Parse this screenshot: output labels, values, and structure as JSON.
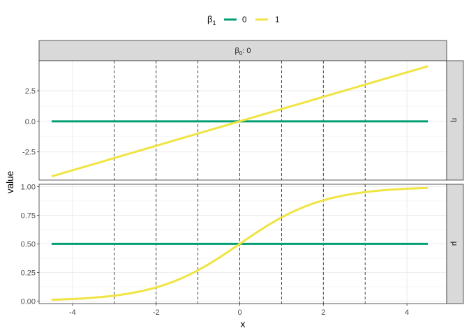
{
  "chart_data": {
    "type": "line",
    "xlabel": "x",
    "ylabel": "value",
    "xlim": [
      -4.8,
      4.95
    ],
    "x_ticks": [
      -4,
      -2,
      0,
      2,
      4
    ],
    "x_tick_labels": [
      "-4",
      "-2",
      "0",
      "2",
      "4"
    ],
    "vlines": [
      -3,
      -2,
      -1,
      0,
      1,
      2,
      3
    ],
    "grid": true,
    "legend": {
      "position": "top",
      "title": "β",
      "title_subscript": "1",
      "entries": [
        {
          "label": "0",
          "color": "#009E73"
        },
        {
          "label": "1",
          "color": "#F0E442"
        }
      ]
    },
    "top_strip": {
      "base": "β",
      "subscript": "0",
      "suffix": ": 0"
    },
    "panels": [
      {
        "row_label": "η",
        "ylim": [
          -4.8,
          4.95
        ],
        "y_ticks": [
          -2.5,
          0,
          2.5
        ],
        "y_tick_labels": [
          "-2.5",
          "0.0",
          "2.5"
        ],
        "series": [
          {
            "name": "0",
            "color": "#009E73",
            "func": "const",
            "value": 0,
            "x": [
              -4.5,
              4.5
            ]
          },
          {
            "name": "1",
            "color": "#F0E442",
            "func": "identity",
            "x": [
              -4.5,
              4.5
            ]
          }
        ]
      },
      {
        "row_label": "μ",
        "ylim": [
          -0.0223,
          1.0213
        ],
        "y_ticks": [
          0,
          0.25,
          0.5,
          0.75,
          1.0
        ],
        "y_tick_labels": [
          "0.00",
          "0.25",
          "0.50",
          "0.75",
          "1.00"
        ],
        "series": [
          {
            "name": "0",
            "color": "#009E73",
            "func": "const",
            "value": 0.5,
            "x": [
              -4.5,
              4.5
            ]
          },
          {
            "name": "1",
            "color": "#F0E442",
            "func": "logistic",
            "x": [
              -4.5,
              4.5
            ]
          }
        ]
      }
    ]
  }
}
